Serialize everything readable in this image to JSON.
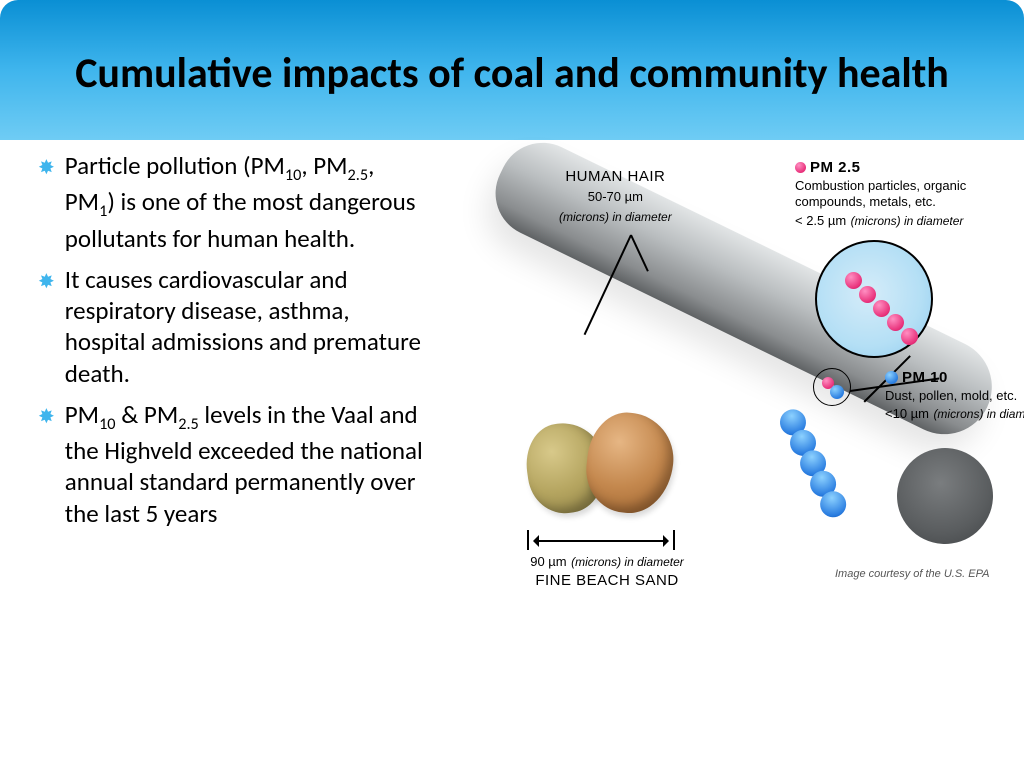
{
  "title": "Cumulative impacts of coal and community health",
  "bullets": [
    "Particle pollution (PM<sub>10</sub>, PM<sub>2.5</sub>, PM<sub>1</sub>) is one of the most dangerous pollutants for human health.",
    "It causes cardiovascular and respiratory disease, asthma, hospital admissions and premature death.",
    "PM<sub>10</sub> & PM<sub>2.5</sub> levels in the Vaal and the Highveld exceeded the national annual standard permanently over the last 5 years"
  ],
  "labels": {
    "hair_title": "HUMAN HAIR",
    "hair_size": "50-70 µm",
    "hair_note": "(microns) in diameter",
    "sand_size": "90 µm",
    "sand_note": "(microns) in diameter",
    "sand_title": "FINE BEACH SAND",
    "pm25_title": "PM 2.5",
    "pm25_desc": "Combustion particles, organic compounds, metals, etc.",
    "pm25_size": "< 2.5 µm",
    "pm25_note": "(microns) in diameter",
    "pm10_title": "PM 10",
    "pm10_desc": "Dust, pollen, mold, etc.",
    "pm10_size": "<10 µm",
    "pm10_note": "(microns) in diameter"
  },
  "credit": "Image courtesy of the U.S. EPA",
  "colors": {
    "header_top": "#0a8fd4",
    "header_bottom": "#6fccf4",
    "bullet_star": "#3fb5ed",
    "pm25_ball": "#e8307a",
    "pm10_ball": "#2a7de0",
    "hair_light": "#e2e5e6",
    "hair_dark": "#5f6264",
    "sand1": "#b5a560",
    "sand2": "#c4884e"
  }
}
